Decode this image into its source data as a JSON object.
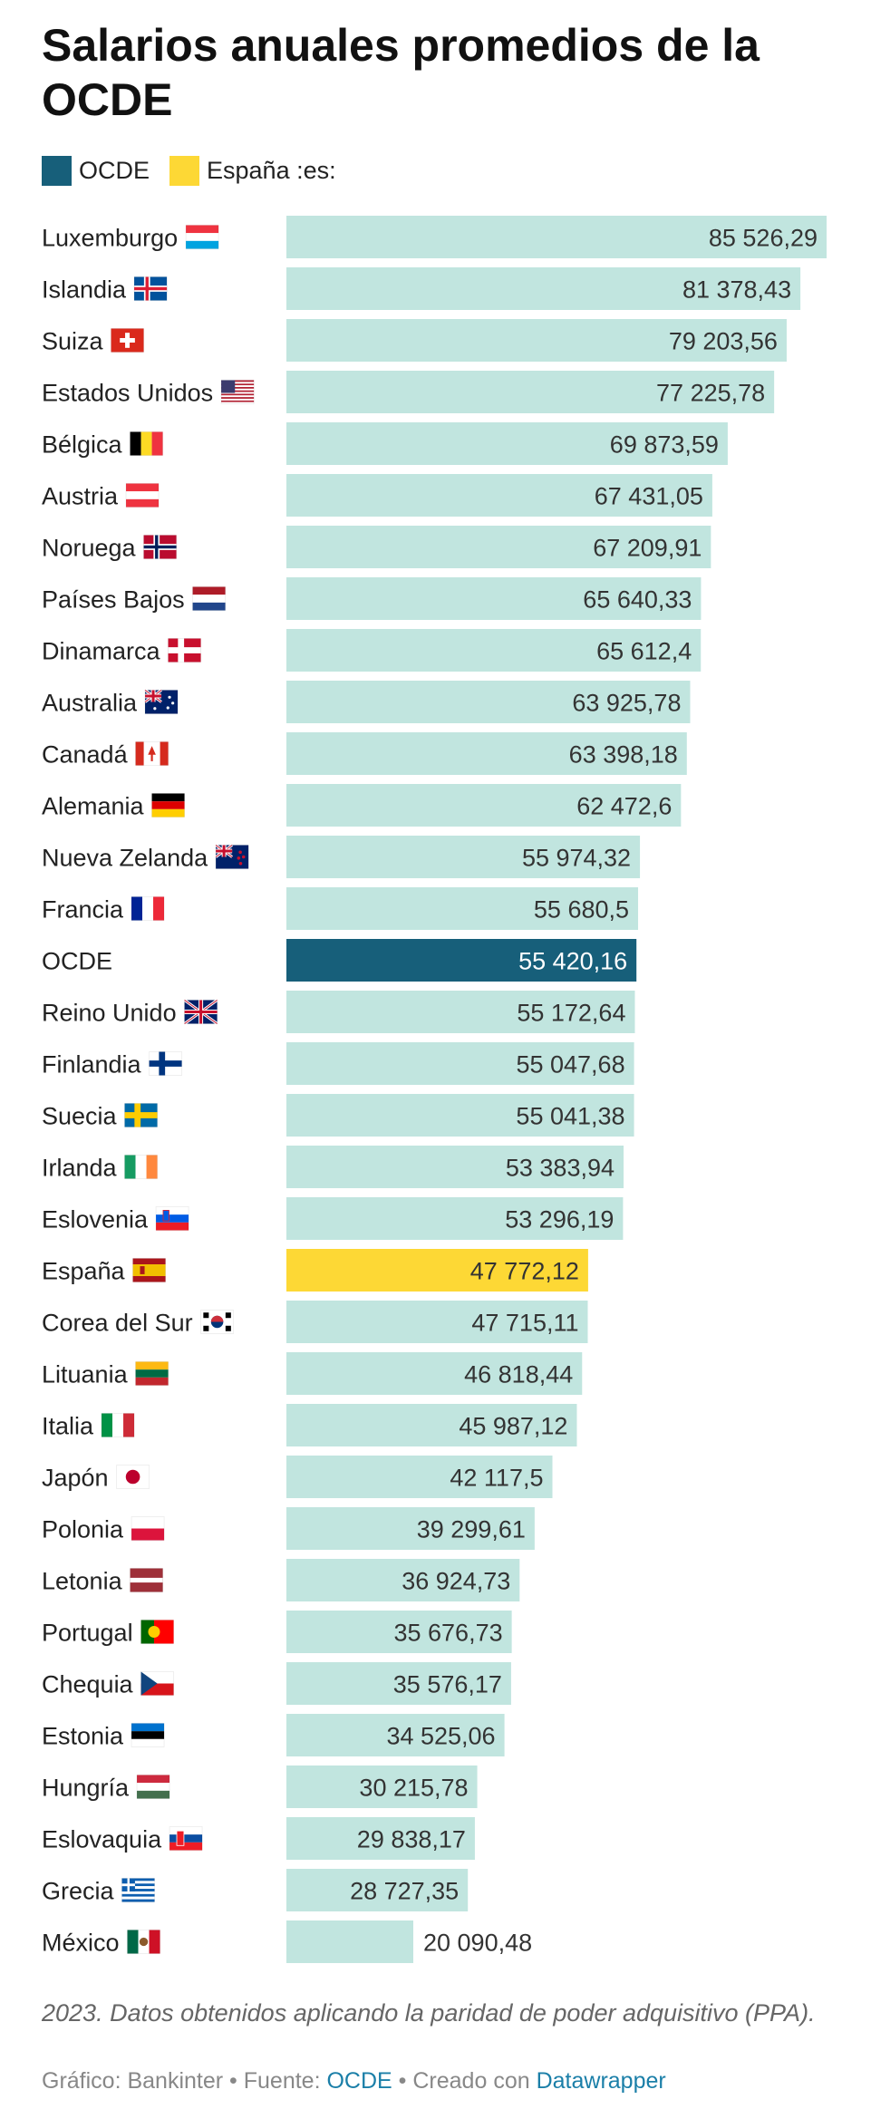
{
  "title": "Salarios anuales promedios de la OCDE",
  "legend": [
    {
      "label": "OCDE",
      "color": "#175f7a"
    },
    {
      "label": "España :es:",
      "color": "#fdd835"
    }
  ],
  "colors": {
    "default_bar": "#c1e5df",
    "ocde_bar": "#175f7a",
    "spain_bar": "#fdd835",
    "label_text": "#222222",
    "value_text_dark": "#333333",
    "value_text_light": "#ffffff"
  },
  "chart_data": {
    "type": "bar",
    "orientation": "horizontal",
    "categories": [
      "Luxemburgo",
      "Islandia",
      "Suiza",
      "Estados Unidos",
      "Bélgica",
      "Austria",
      "Noruega",
      "Países Bajos",
      "Dinamarca",
      "Australia",
      "Canadá",
      "Alemania",
      "Nueva Zelanda",
      "Francia",
      "OCDE",
      "Reino Unido",
      "Finlandia",
      "Suecia",
      "Irlanda",
      "Eslovenia",
      "España",
      "Corea del Sur",
      "Lituania",
      "Italia",
      "Japón",
      "Polonia",
      "Letonia",
      "Portugal",
      "Chequia",
      "Estonia",
      "Hungría",
      "Eslovaquia",
      "Grecia",
      "México"
    ],
    "values": [
      85526.29,
      81378.43,
      79203.56,
      77225.78,
      69873.59,
      67431.05,
      67209.91,
      65640.33,
      65612.4,
      63925.78,
      63398.18,
      62472.6,
      55974.32,
      55680.5,
      55420.16,
      55172.64,
      55047.68,
      55041.38,
      53383.94,
      53296.19,
      47772.12,
      47715.11,
      46818.44,
      45987.12,
      42117.5,
      39299.61,
      36924.73,
      35676.73,
      35576.17,
      34525.06,
      30215.78,
      29838.17,
      28727.35,
      20090.48
    ],
    "value_labels": [
      "85 526,29",
      "81 378,43",
      "79 203,56",
      "77 225,78",
      "69 873,59",
      "67 431,05",
      "67 209,91",
      "65 640,33",
      "65 612,4",
      "63 925,78",
      "63 398,18",
      "62 472,6",
      "55 974,32",
      "55 680,5",
      "55 420,16",
      "55 172,64",
      "55 047,68",
      "55 041,38",
      "53 383,94",
      "53 296,19",
      "47 772,12",
      "47 715,11",
      "46 818,44",
      "45 987,12",
      "42 117,5",
      "39 299,61",
      "36 924,73",
      "35 676,73",
      "35 576,17",
      "34 525,06",
      "30 215,78",
      "29 838,17",
      "28 727,35",
      "20 090,48"
    ],
    "flags": [
      "luxembourg-flag-icon",
      "iceland-flag-icon",
      "switzerland-flag-icon",
      "usa-flag-icon",
      "belgium-flag-icon",
      "austria-flag-icon",
      "norway-flag-icon",
      "netherlands-flag-icon",
      "denmark-flag-icon",
      "australia-flag-icon",
      "canada-flag-icon",
      "germany-flag-icon",
      "new-zealand-flag-icon",
      "france-flag-icon",
      "",
      "uk-flag-icon",
      "finland-flag-icon",
      "sweden-flag-icon",
      "ireland-flag-icon",
      "slovenia-flag-icon",
      "spain-flag-icon",
      "south-korea-flag-icon",
      "lithuania-flag-icon",
      "italy-flag-icon",
      "japan-flag-icon",
      "poland-flag-icon",
      "latvia-flag-icon",
      "portugal-flag-icon",
      "czechia-flag-icon",
      "estonia-flag-icon",
      "hungary-flag-icon",
      "slovakia-flag-icon",
      "greece-flag-icon",
      "mexico-flag-icon"
    ],
    "highlight": {
      "OCDE": "ocde_bar",
      "España": "spain_bar"
    },
    "xlim": [
      0,
      85526.29
    ],
    "grid": false
  },
  "footnote": "2023. Datos obtenidos aplicando la paridad de poder adquisitivo (PPA).",
  "credits": {
    "grafico": "Gráfico: Bankinter",
    "sep1": " • ",
    "fuente_prefix": "Fuente: ",
    "fuente_link": "OCDE",
    "sep2": " • ",
    "creado_prefix": "Creado con ",
    "creado_link": "Datawrapper"
  }
}
